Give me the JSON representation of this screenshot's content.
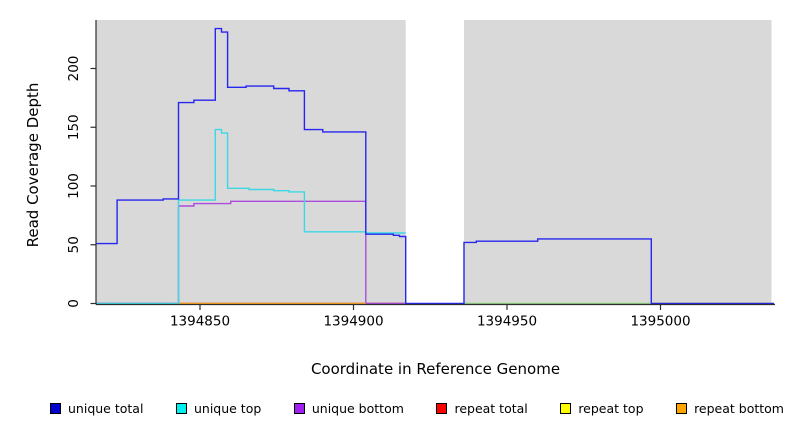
{
  "figure": {
    "background_color": "#FFFFFF",
    "axis_color": "#2E2E2E",
    "text_color": "#000000"
  },
  "chart_data": {
    "type": "line",
    "subtype": "step-coverage",
    "title": "",
    "xlabel": "Coordinate in Reference Genome",
    "ylabel": "Read Coverage Depth",
    "xlim": [
      1394816,
      1395037
    ],
    "ylim": [
      0,
      237
    ],
    "x_ticks": [
      "1394850",
      "1394900",
      "1394950",
      "1395000"
    ],
    "x_tick_values": [
      1394850,
      1394900,
      1394950,
      1395000
    ],
    "y_ticks": [
      "0",
      "50",
      "100",
      "150",
      "200"
    ],
    "y_tick_values": [
      0,
      50,
      100,
      150,
      200
    ],
    "grid": false,
    "plot_background": "#D9D9D9",
    "masked_region": {
      "x_start": 1394917,
      "x_end": 1394936,
      "color": "#FFFFFF"
    },
    "legend_position": "bottom",
    "series": [
      {
        "name": "unique total",
        "color": "#2626F0",
        "legend_color": "#0000D0",
        "segments": [
          [
            1394816,
            1394823,
            51
          ],
          [
            1394823,
            1394838,
            88
          ],
          [
            1394838,
            1394843,
            89
          ],
          [
            1394843,
            1394848,
            171
          ],
          [
            1394848,
            1394855,
            173
          ],
          [
            1394855,
            1394857,
            234
          ],
          [
            1394857,
            1394859,
            231
          ],
          [
            1394859,
            1394865,
            184
          ],
          [
            1394865,
            1394874,
            185
          ],
          [
            1394874,
            1394879,
            183
          ],
          [
            1394879,
            1394884,
            181
          ],
          [
            1394884,
            1394890,
            148
          ],
          [
            1394890,
            1394904,
            146
          ],
          [
            1394904,
            1394913,
            59
          ],
          [
            1394913,
            1394915,
            58
          ],
          [
            1394915,
            1394917,
            57
          ],
          [
            1394917,
            1394936,
            0
          ],
          [
            1394936,
            1394940,
            52
          ],
          [
            1394940,
            1394960,
            53
          ],
          [
            1394960,
            1394997,
            55
          ],
          [
            1394997,
            1395037,
            0
          ]
        ]
      },
      {
        "name": "unique top",
        "color": "#3CD8E6",
        "legend_color": "#00F0F0",
        "segments": [
          [
            1394816,
            1394843,
            0
          ],
          [
            1394843,
            1394855,
            88
          ],
          [
            1394855,
            1394857,
            148
          ],
          [
            1394857,
            1394859,
            145
          ],
          [
            1394859,
            1394866,
            98
          ],
          [
            1394866,
            1394874,
            97
          ],
          [
            1394874,
            1394879,
            96
          ],
          [
            1394879,
            1394884,
            95
          ],
          [
            1394884,
            1394904,
            61
          ],
          [
            1394904,
            1394917,
            60
          ]
        ]
      },
      {
        "name": "unique bottom",
        "color": "#AA4CDE",
        "legend_color": "#A020F0",
        "segments": [
          [
            1394816,
            1394843,
            0
          ],
          [
            1394843,
            1394848,
            83
          ],
          [
            1394848,
            1394860,
            85
          ],
          [
            1394860,
            1394904,
            87
          ],
          [
            1394904,
            1394917,
            0
          ]
        ]
      },
      {
        "name": "repeat total",
        "color": "#E62E3C",
        "legend_color": "#FF0000",
        "segments": [
          [
            1394816,
            1394917,
            0
          ]
        ]
      },
      {
        "name": "repeat top",
        "color": "#F0F000",
        "legend_color": "#FFFF00",
        "segments": [
          [
            1394936,
            1395037,
            0
          ]
        ]
      },
      {
        "name": "repeat bottom",
        "color": "#FFA51E",
        "legend_color": "#FFA500",
        "segments": [
          [
            1394841,
            1394904,
            0
          ]
        ]
      }
    ],
    "overlap_segments": [
      {
        "x_start": 1394936,
        "x_end": 1394997,
        "depth": 0,
        "color": "#8FD08F",
        "series": [
          "unique top",
          "repeat top"
        ]
      }
    ]
  }
}
